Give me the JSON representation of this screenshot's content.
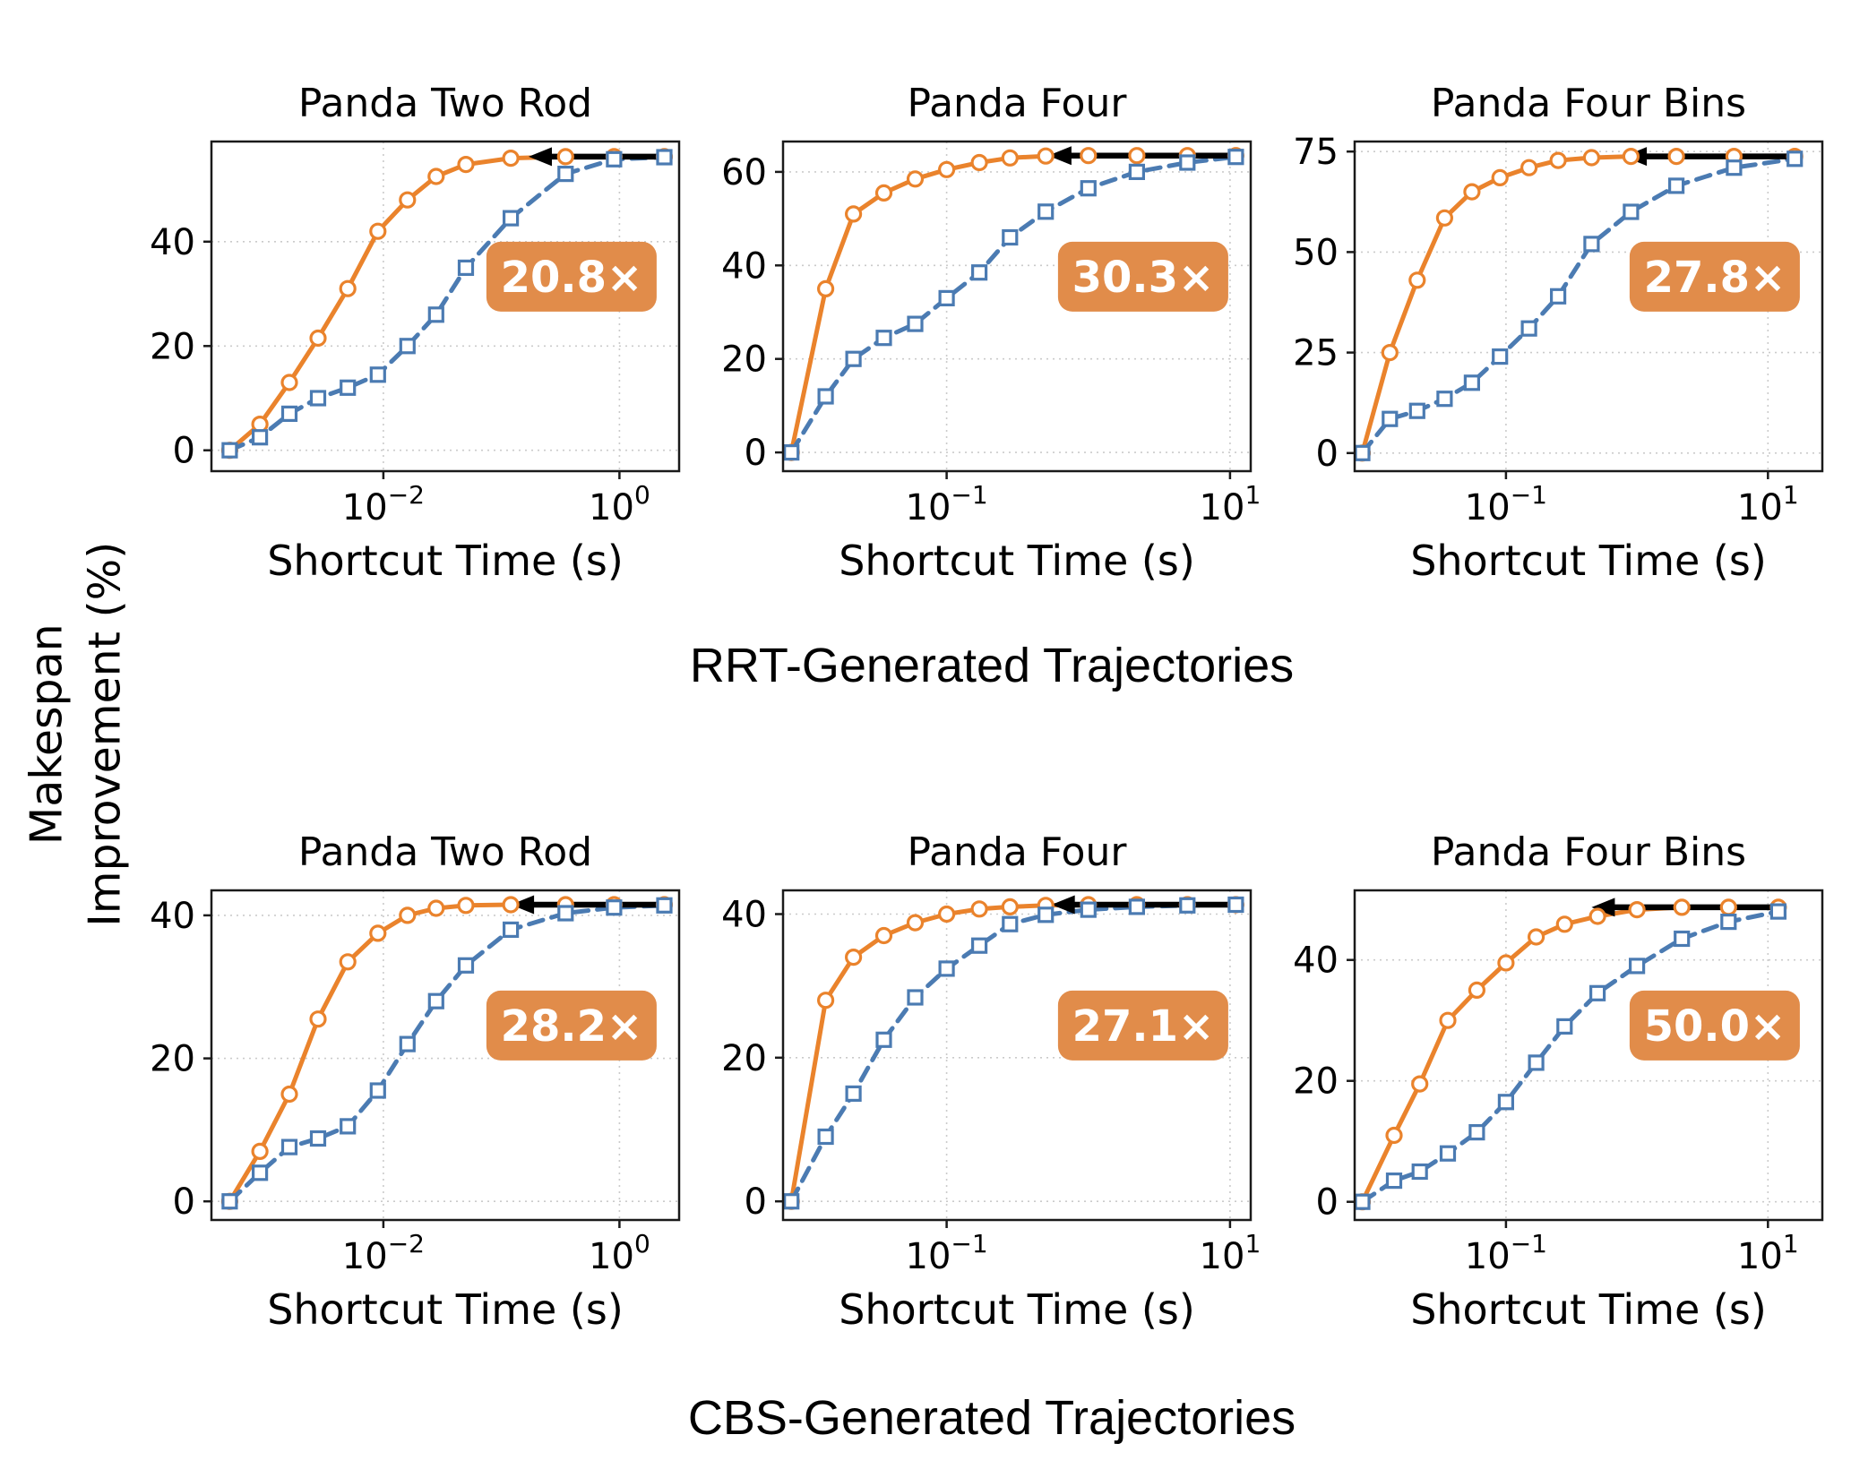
{
  "figure": {
    "ylabel": "Makespan Improvement (%)",
    "ylabel_line1": "Makespan",
    "ylabel_line2": "Improvement (%)",
    "captions": [
      "RRT-Generated Trajectories",
      "CBS-Generated Trajectories"
    ],
    "colors": {
      "orange": "#EA832C",
      "badge": "#E18C4A",
      "blue": "#4B7BB2",
      "grid": "#CBCBCB",
      "axis": "#1A1A1A",
      "arrow": "#000000",
      "badge_text": "#FFFFFF"
    }
  },
  "chart_data": [
    {
      "type": "line",
      "group": "RRT",
      "title": "Panda Two Rod",
      "xlabel": "Shortcut Time (s)",
      "xscale": "log",
      "grid": true,
      "xlim": [
        0.00035,
        3.2
      ],
      "ylim": [
        -4,
        59.2
      ],
      "xticks": [
        {
          "value": 0.01,
          "label": "10⁻²",
          "exp": "−2"
        },
        {
          "value": 1,
          "label": "10⁰",
          "exp": "0"
        }
      ],
      "yticks": [
        0,
        20,
        40
      ],
      "badge": "20.8×",
      "arrow": {
        "y": 56.3,
        "x_tail": 2.4,
        "x_head": 0.17
      },
      "series": [
        {
          "name": "orange-solid-circles",
          "marker": "circle",
          "line": "solid",
          "x": [
            0.0005,
            0.0009,
            0.0016,
            0.0028,
            0.005,
            0.009,
            0.016,
            0.028,
            0.05,
            0.12,
            0.35,
            0.9,
            2.4
          ],
          "y": [
            0,
            5,
            13,
            21.5,
            31,
            42,
            48,
            52.5,
            54.8,
            56,
            56.3,
            56.3,
            56.3
          ]
        },
        {
          "name": "blue-dashed-squares",
          "marker": "square",
          "line": "dashed",
          "x": [
            0.0005,
            0.0009,
            0.0016,
            0.0028,
            0.005,
            0.009,
            0.016,
            0.028,
            0.05,
            0.12,
            0.35,
            0.9,
            2.4
          ],
          "y": [
            0,
            2.5,
            7,
            10,
            12,
            14.5,
            20,
            26,
            35,
            44.5,
            53,
            55.8,
            56.2
          ]
        }
      ]
    },
    {
      "type": "line",
      "group": "RRT",
      "title": "Panda Four",
      "xlabel": "Shortcut Time (s)",
      "xscale": "log",
      "grid": true,
      "xlim": [
        0.007,
        14
      ],
      "ylim": [
        -4,
        66.5
      ],
      "xticks": [
        {
          "value": 0.1,
          "label": "10⁻¹",
          "exp": "−1"
        },
        {
          "value": 10,
          "label": "10¹",
          "exp": "1"
        }
      ],
      "yticks": [
        0,
        20,
        40,
        60
      ],
      "badge": "30.3×",
      "arrow": {
        "y": 63.5,
        "x_tail": 11,
        "x_head": 0.52
      },
      "series": [
        {
          "name": "orange-solid-circles",
          "marker": "circle",
          "line": "solid",
          "x": [
            0.008,
            0.014,
            0.022,
            0.036,
            0.06,
            0.1,
            0.17,
            0.28,
            0.5,
            1.0,
            2.2,
            5,
            11
          ],
          "y": [
            0,
            35,
            51,
            55.5,
            58.5,
            60.5,
            62,
            63,
            63.4,
            63.5,
            63.5,
            63.5,
            63.5
          ]
        },
        {
          "name": "blue-dashed-squares",
          "marker": "square",
          "line": "dashed",
          "x": [
            0.008,
            0.014,
            0.022,
            0.036,
            0.06,
            0.1,
            0.17,
            0.28,
            0.5,
            1.0,
            2.2,
            5,
            11
          ],
          "y": [
            0,
            12,
            20,
            24.5,
            27.5,
            33,
            38.5,
            46,
            51.5,
            56.5,
            60,
            62,
            63.2
          ]
        }
      ]
    },
    {
      "type": "line",
      "group": "RRT",
      "title": "Panda Four Bins",
      "xlabel": "Shortcut Time (s)",
      "xscale": "log",
      "grid": true,
      "xlim": [
        0.007,
        26
      ],
      "ylim": [
        -4.5,
        77.5
      ],
      "xticks": [
        {
          "value": 0.1,
          "label": "10⁻¹",
          "exp": "−1"
        },
        {
          "value": 10,
          "label": "10¹",
          "exp": "1"
        }
      ],
      "yticks": [
        0,
        25,
        50,
        75
      ],
      "badge": "27.8×",
      "arrow": {
        "y": 73.8,
        "x_tail": 16,
        "x_head": 0.79
      },
      "series": [
        {
          "name": "orange-solid-circles",
          "marker": "circle",
          "line": "solid",
          "x": [
            0.008,
            0.013,
            0.021,
            0.034,
            0.055,
            0.09,
            0.15,
            0.25,
            0.45,
            0.9,
            2,
            5.5,
            16
          ],
          "y": [
            0,
            25,
            43,
            58.5,
            65,
            68.5,
            71,
            72.8,
            73.5,
            73.8,
            73.8,
            73.8,
            73.8
          ]
        },
        {
          "name": "blue-dashed-squares",
          "marker": "square",
          "line": "dashed",
          "x": [
            0.008,
            0.013,
            0.021,
            0.034,
            0.055,
            0.09,
            0.15,
            0.25,
            0.45,
            0.9,
            2,
            5.5,
            16
          ],
          "y": [
            0,
            8.5,
            10.5,
            13.5,
            17.5,
            24,
            31,
            39,
            52,
            60,
            66.5,
            71,
            73.2
          ]
        }
      ]
    },
    {
      "type": "line",
      "group": "CBS",
      "title": "Panda Two Rod",
      "xlabel": "Shortcut Time (s)",
      "xscale": "log",
      "grid": true,
      "xlim": [
        0.00035,
        3.2
      ],
      "ylim": [
        -2.6,
        43.5
      ],
      "xticks": [
        {
          "value": 0.01,
          "label": "10⁻²",
          "exp": "−2"
        },
        {
          "value": 1,
          "label": "10⁰",
          "exp": "0"
        }
      ],
      "yticks": [
        0,
        20,
        40
      ],
      "badge": "28.2×",
      "arrow": {
        "y": 41.5,
        "x_tail": 2.4,
        "x_head": 0.12
      },
      "series": [
        {
          "name": "orange-solid-circles",
          "marker": "circle",
          "line": "solid",
          "x": [
            0.0005,
            0.0009,
            0.0016,
            0.0028,
            0.005,
            0.009,
            0.016,
            0.028,
            0.05,
            0.12,
            0.35,
            0.9,
            2.4
          ],
          "y": [
            0,
            7,
            15,
            25.5,
            33.5,
            37.5,
            40,
            41,
            41.4,
            41.5,
            41.5,
            41.5,
            41.5
          ]
        },
        {
          "name": "blue-dashed-squares",
          "marker": "square",
          "line": "dashed",
          "x": [
            0.0005,
            0.0009,
            0.0016,
            0.0028,
            0.005,
            0.009,
            0.016,
            0.028,
            0.05,
            0.12,
            0.35,
            0.9,
            2.4
          ],
          "y": [
            0,
            4,
            7.6,
            8.8,
            10.5,
            15.5,
            22,
            28,
            33,
            38,
            40.3,
            41.1,
            41.4
          ]
        }
      ]
    },
    {
      "type": "line",
      "group": "CBS",
      "title": "Panda Four",
      "xlabel": "Shortcut Time (s)",
      "xscale": "log",
      "grid": true,
      "xlim": [
        0.007,
        14
      ],
      "ylim": [
        -2.6,
        43.3
      ],
      "xticks": [
        {
          "value": 0.1,
          "label": "10⁻¹",
          "exp": "−1"
        },
        {
          "value": 10,
          "label": "10¹",
          "exp": "1"
        }
      ],
      "yticks": [
        0,
        20,
        40
      ],
      "badge": "27.1×",
      "arrow": {
        "y": 41.3,
        "x_tail": 11,
        "x_head": 0.55
      },
      "series": [
        {
          "name": "orange-solid-circles",
          "marker": "circle",
          "line": "solid",
          "x": [
            0.008,
            0.014,
            0.022,
            0.036,
            0.06,
            0.1,
            0.17,
            0.28,
            0.5,
            1.0,
            2.2,
            5,
            11
          ],
          "y": [
            0,
            28,
            34,
            37,
            38.8,
            40,
            40.7,
            41,
            41.2,
            41.3,
            41.3,
            41.3,
            41.3
          ]
        },
        {
          "name": "blue-dashed-squares",
          "marker": "square",
          "line": "dashed",
          "x": [
            0.008,
            0.014,
            0.022,
            0.036,
            0.06,
            0.1,
            0.17,
            0.28,
            0.5,
            1.0,
            2.2,
            5,
            11
          ],
          "y": [
            0,
            9,
            15,
            22.5,
            28.4,
            32.4,
            35.6,
            38.6,
            39.9,
            40.6,
            41,
            41.2,
            41.3
          ]
        }
      ]
    },
    {
      "type": "line",
      "group": "CBS",
      "title": "Panda Four Bins",
      "xlabel": "Shortcut Time (s)",
      "xscale": "log",
      "grid": true,
      "xlim": [
        0.007,
        26
      ],
      "ylim": [
        -3,
        51.5
      ],
      "xticks": [
        {
          "value": 0.1,
          "label": "10⁻¹",
          "exp": "−1"
        },
        {
          "value": 10,
          "label": "10¹",
          "exp": "1"
        }
      ],
      "yticks": [
        0,
        20,
        40
      ],
      "badge": "50.0×",
      "arrow": {
        "y": 48.7,
        "x_tail": 12,
        "x_head": 0.45
      },
      "series": [
        {
          "name": "orange-solid-circles",
          "marker": "circle",
          "line": "solid",
          "x": [
            0.008,
            0.014,
            0.022,
            0.036,
            0.06,
            0.1,
            0.17,
            0.28,
            0.5,
            1.0,
            2.2,
            5,
            12
          ],
          "y": [
            0,
            11,
            19.5,
            30,
            35,
            39.5,
            43.8,
            45.9,
            47.2,
            48.3,
            48.7,
            48.7,
            48.7
          ]
        },
        {
          "name": "blue-dashed-squares",
          "marker": "square",
          "line": "dashed",
          "x": [
            0.008,
            0.014,
            0.022,
            0.036,
            0.06,
            0.1,
            0.17,
            0.28,
            0.5,
            1.0,
            2.2,
            5,
            12
          ],
          "y": [
            0,
            3.5,
            5,
            8,
            11.5,
            16.5,
            23,
            29,
            34.5,
            39,
            43.5,
            46.3,
            48
          ]
        }
      ]
    }
  ]
}
